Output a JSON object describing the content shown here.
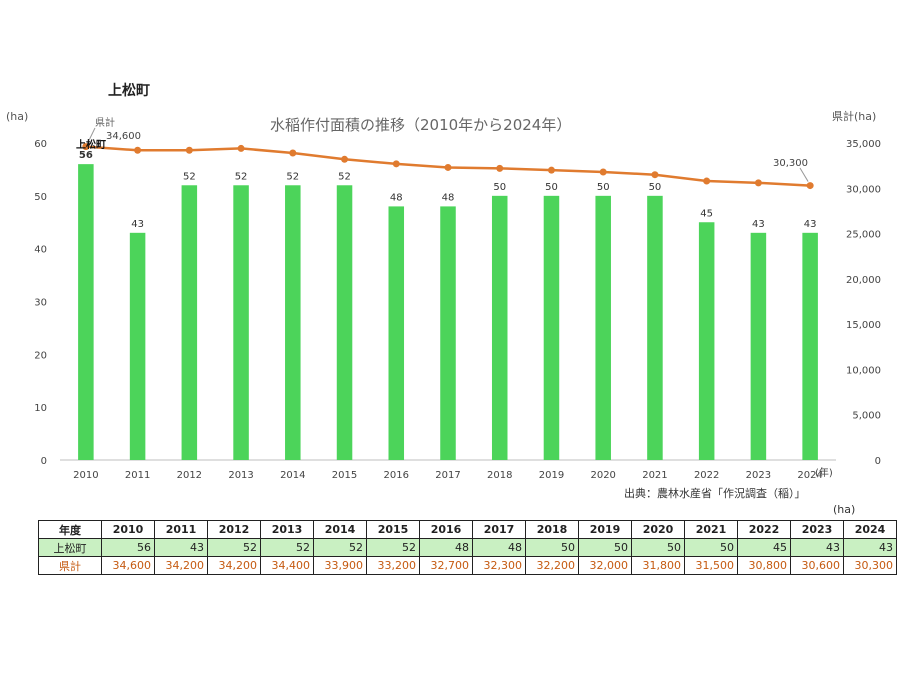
{
  "page": {
    "town_title": "上松町",
    "left_axis_unit": "(ha)",
    "right_axis_unit": "県計(ha)",
    "source": "出典：農林水産省「作況調査（稲）」",
    "table_unit": "(ha)"
  },
  "chart_data": {
    "type": "bar",
    "title": "水稲作付面積の推移（2010年から2024年）",
    "categories": [
      "2010",
      "2011",
      "2012",
      "2013",
      "2014",
      "2015",
      "2016",
      "2017",
      "2018",
      "2019",
      "2020",
      "2021",
      "2022",
      "2023",
      "2024"
    ],
    "x_unit_label": "(年)",
    "series": [
      {
        "name": "上松町",
        "type": "bar",
        "axis": "left",
        "color": "#4cd45a",
        "values": [
          56,
          43,
          52,
          52,
          52,
          52,
          48,
          48,
          50,
          50,
          50,
          50,
          45,
          43,
          43
        ]
      },
      {
        "name": "県計",
        "type": "line",
        "axis": "right",
        "color": "#e07b2f",
        "values": [
          34600,
          34200,
          34200,
          34400,
          33900,
          33200,
          32700,
          32300,
          32200,
          32000,
          31800,
          31500,
          30800,
          30600,
          30300
        ]
      }
    ],
    "left_axis": {
      "ylim": [
        0,
        60
      ],
      "ticks": [
        "0",
        "10",
        "20",
        "30",
        "40",
        "50",
        "60"
      ]
    },
    "right_axis": {
      "ylim": [
        0,
        35000
      ],
      "ticks": [
        "0",
        "5,000",
        "10,000",
        "15,000",
        "20,000",
        "25,000",
        "30,000",
        "35,000"
      ]
    },
    "annotations": {
      "town_series_label": "上松町",
      "pref_series_label": "県計",
      "pref_first_label": "34,600",
      "pref_last_label": "30,300"
    }
  },
  "table": {
    "header_label": "年度",
    "years": [
      "2010",
      "2011",
      "2012",
      "2013",
      "2014",
      "2015",
      "2016",
      "2017",
      "2018",
      "2019",
      "2020",
      "2021",
      "2022",
      "2023",
      "2024"
    ],
    "rows": [
      {
        "label": "上松町",
        "values": [
          "56",
          "43",
          "52",
          "52",
          "52",
          "52",
          "48",
          "48",
          "50",
          "50",
          "50",
          "50",
          "45",
          "43",
          "43"
        ]
      },
      {
        "label": "県計",
        "values": [
          "34,600",
          "34,200",
          "34,200",
          "34,400",
          "33,900",
          "33,200",
          "32,700",
          "32,300",
          "32,200",
          "32,000",
          "31,800",
          "31,500",
          "30,800",
          "30,600",
          "30,300"
        ]
      }
    ]
  }
}
